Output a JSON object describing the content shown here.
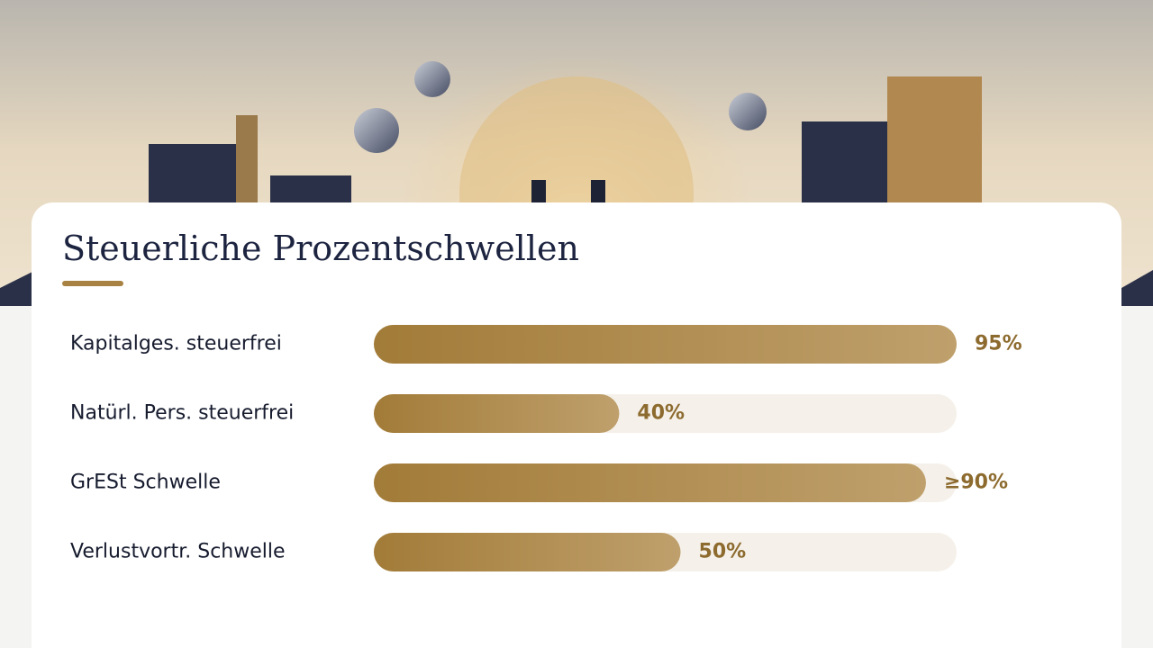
{
  "chart_data": {
    "type": "bar",
    "orientation": "horizontal",
    "title": "Steuerliche Prozentschwellen",
    "categories": [
      "Kapitalges. steuerfrei",
      "Natürl. Pers. steuerfrei",
      "GrESt Schwelle",
      "Verlustvortr. Schwelle"
    ],
    "values": [
      95,
      40,
      90,
      50
    ],
    "value_labels": [
      "95%",
      "40%",
      "≥90%",
      "50%"
    ],
    "xlim": [
      0,
      95
    ],
    "color": "#a88242"
  }
}
